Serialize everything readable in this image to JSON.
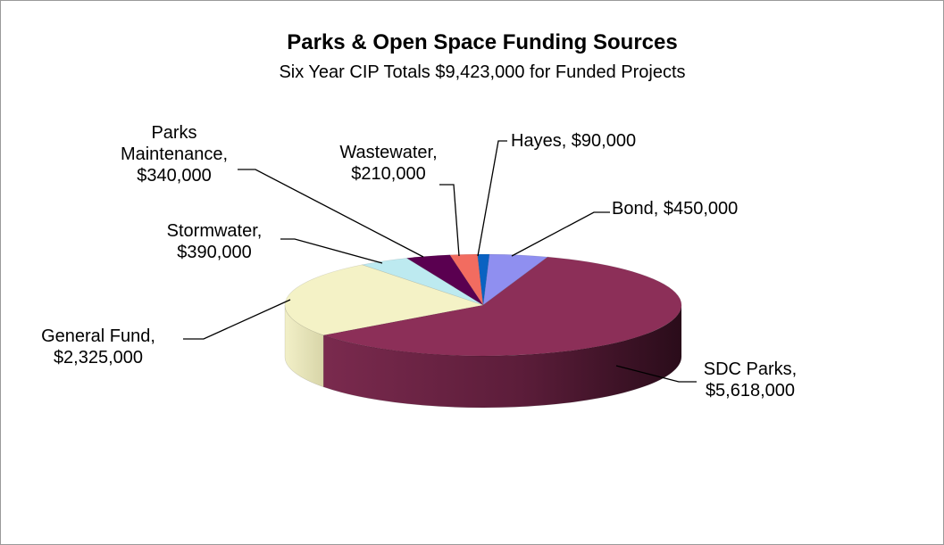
{
  "chart_data": {
    "type": "pie",
    "title": "Parks & Open Space Funding Sources",
    "subtitle": "Six Year CIP Totals $9,423,000 for Funded Projects",
    "slices": [
      {
        "name": "Bond",
        "value": 450000,
        "label_lines": [
          "Bond, $450,000"
        ],
        "color": "#8f8ff0"
      },
      {
        "name": "SDC Parks",
        "value": 5618000,
        "label_lines": [
          "SDC Parks,",
          "$5,618,000"
        ],
        "color": "#8c2f58"
      },
      {
        "name": "General Fund",
        "value": 2325000,
        "label_lines": [
          "General Fund,",
          "$2,325,000"
        ],
        "color": "#f4f2c6"
      },
      {
        "name": "Stormwater",
        "value": 390000,
        "label_lines": [
          "Stormwater,",
          "$390,000"
        ],
        "color": "#bdeaf0"
      },
      {
        "name": "Parks Maintenance",
        "value": 340000,
        "label_lines": [
          "Parks",
          "Maintenance,",
          "$340,000"
        ],
        "color": "#5a0050"
      },
      {
        "name": "Wastewater",
        "value": 210000,
        "label_lines": [
          "Wastewater,",
          "$210,000"
        ],
        "color": "#f26c60"
      },
      {
        "name": "Hayes",
        "value": 90000,
        "label_lines": [
          "Hayes, $90,000"
        ],
        "color": "#0a62c2"
      }
    ]
  }
}
